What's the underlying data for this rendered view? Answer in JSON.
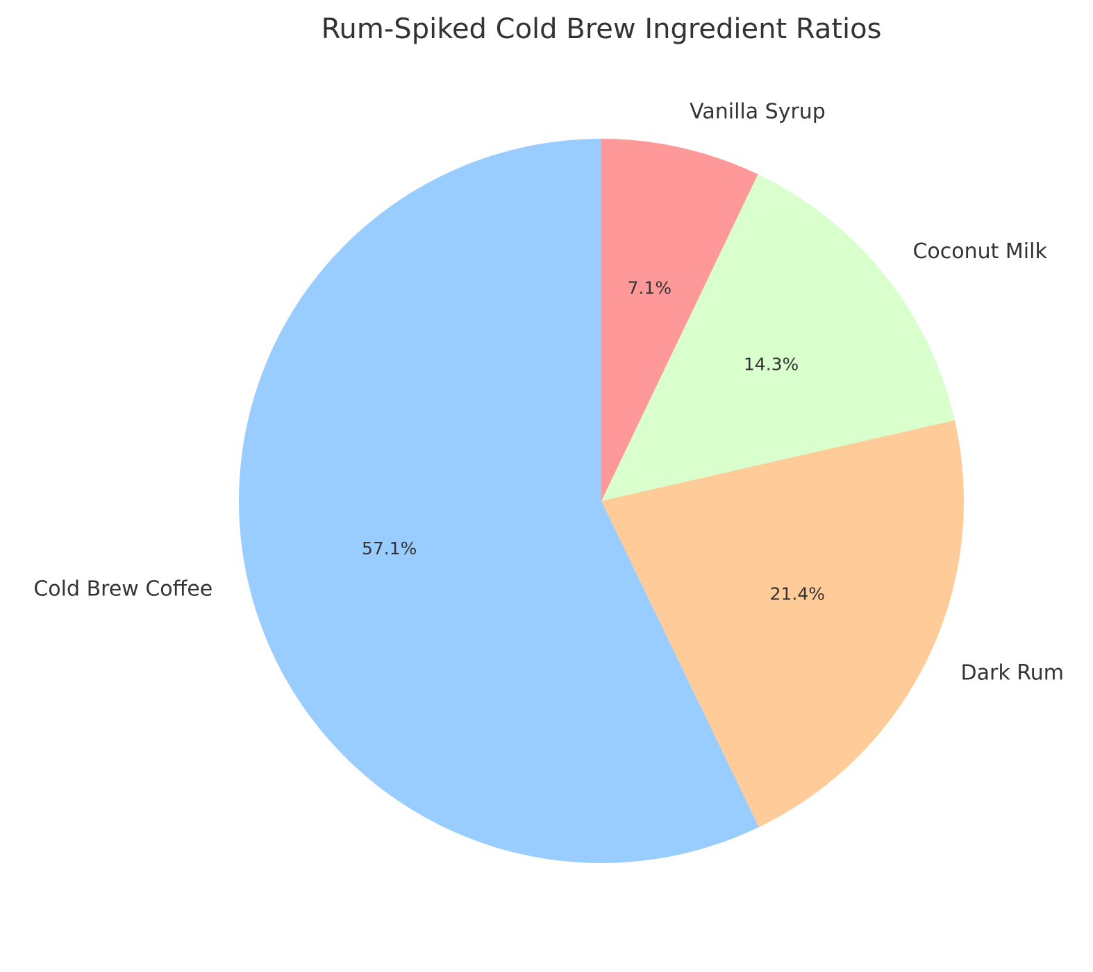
{
  "chart_data": {
    "type": "pie",
    "title": "Rum-Spiked Cold Brew Ingredient Ratios",
    "start_angle_deg": 90,
    "direction": "counterclockwise",
    "slices": [
      {
        "label": "Cold Brew Coffee",
        "value": 57.1,
        "pct_label": "57.1%",
        "color": "#99ccff"
      },
      {
        "label": "Dark Rum",
        "value": 21.4,
        "pct_label": "21.4%",
        "color": "#ffcc99"
      },
      {
        "label": "Coconut Milk",
        "value": 14.3,
        "pct_label": "14.3%",
        "color": "#d9ffcc"
      },
      {
        "label": "Vanilla Syrup",
        "value": 7.1,
        "pct_label": "7.1%",
        "color": "#ff9999"
      }
    ]
  }
}
